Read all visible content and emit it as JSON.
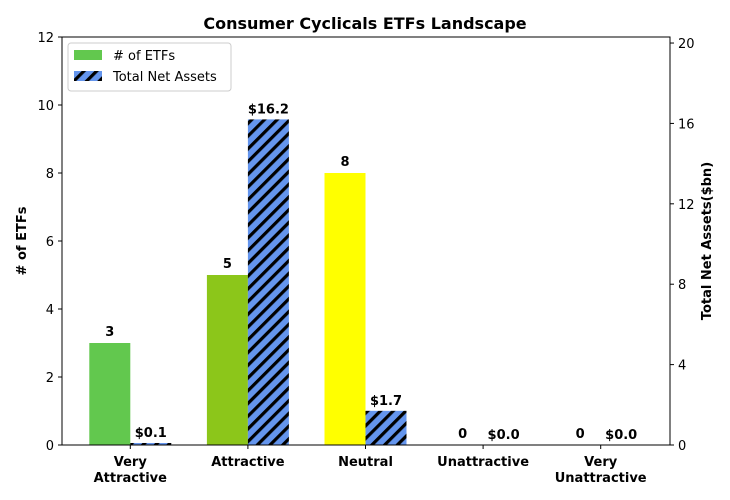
{
  "chart_data": {
    "type": "bar",
    "title": "Consumer Cyclicals ETFs Landscape",
    "categories": [
      "Very\nAttractive",
      "Attractive",
      "Neutral",
      "Unattractive",
      "Very\nUnattractive"
    ],
    "series": [
      {
        "name": "# of ETFs",
        "axis": "left",
        "values": [
          3,
          5,
          8,
          0,
          0
        ],
        "labels": [
          "3",
          "5",
          "8",
          "0",
          "0"
        ],
        "colors": [
          "#62c84e",
          "#8cc61a",
          "#ffff00",
          "#62c84e",
          "#62c84e"
        ],
        "legend_color": "#62c84e"
      },
      {
        "name": "Total Net Assets",
        "axis": "right",
        "values": [
          0.1,
          16.2,
          1.7,
          0.0,
          0.0
        ],
        "labels": [
          "$0.1",
          "$16.2",
          "$1.7",
          "$0.0",
          "$0.0"
        ],
        "color": "#6495ed",
        "hatch": "diagonal"
      }
    ],
    "ylabel": "# of ETFs",
    "ylim": [
      0,
      12
    ],
    "yticks": [
      0,
      2,
      4,
      6,
      8,
      10,
      12
    ],
    "y2label": "Total Net Assets($bn)",
    "y2lim": [
      0,
      20.3
    ],
    "y2ticks": [
      0,
      4,
      8,
      12,
      16,
      20
    ],
    "grid": false,
    "legend_position": "top-left"
  }
}
